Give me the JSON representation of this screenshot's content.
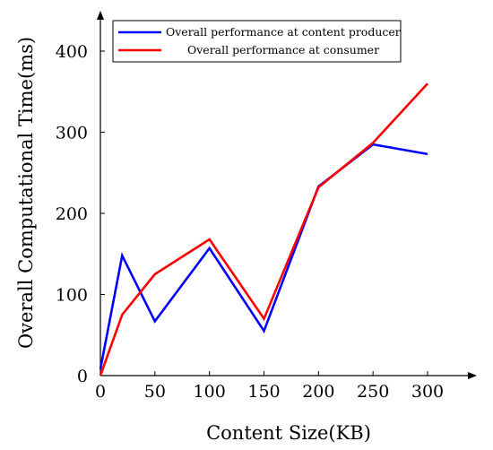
{
  "chart_data": {
    "type": "line",
    "title": "",
    "xlabel": "Content Size(KB)",
    "ylabel": "Overall Computational Time(ms)",
    "xlim": [
      0,
      340
    ],
    "ylim": [
      0,
      440
    ],
    "xticks": [
      0,
      50,
      100,
      150,
      200,
      250,
      300
    ],
    "yticks": [
      0,
      100,
      200,
      300,
      400
    ],
    "grid": false,
    "legend_position": "top-left",
    "series": [
      {
        "name": "Overall performance at content producer",
        "color": "#0000ff",
        "x": [
          0,
          20,
          50,
          100,
          150,
          200,
          250,
          300
        ],
        "y": [
          8,
          148,
          67,
          157,
          55,
          233,
          285,
          273
        ]
      },
      {
        "name": "Overall performance at consumer",
        "color": "#ff0000",
        "x": [
          0,
          20,
          50,
          100,
          150,
          200,
          250,
          300
        ],
        "y": [
          0,
          75,
          125,
          168,
          70,
          232,
          287,
          360
        ]
      }
    ]
  }
}
